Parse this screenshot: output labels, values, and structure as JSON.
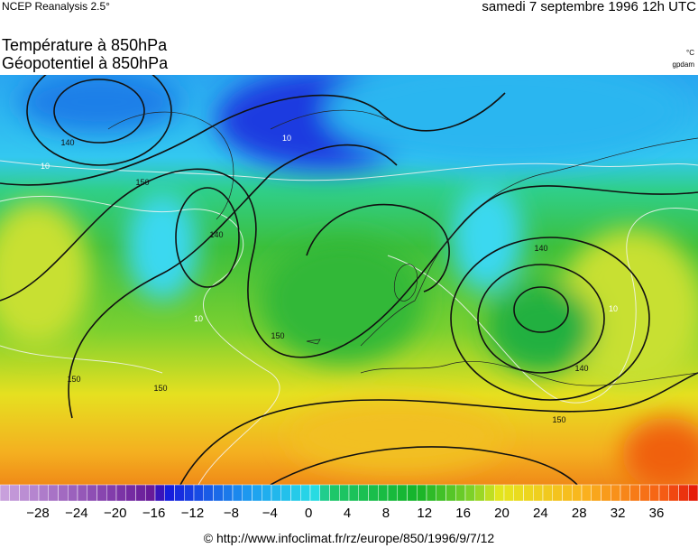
{
  "header": {
    "source": "NCEP Reanalysis 2.5°",
    "date": "samedi 7 septembre 1996 12h UTC"
  },
  "titles": {
    "line1": "Température à 850hPa",
    "line2": "Géopotentiel à 850hPa",
    "unit1": "°C",
    "unit2": "gpdam"
  },
  "map": {
    "contour_labels": [
      "140",
      "140",
      "150",
      "150",
      "140",
      "150",
      "150",
      "140",
      "150",
      "10",
      "10",
      "10",
      "10"
    ]
  },
  "colorbar": {
    "labels": [
      "−28",
      "−24",
      "−20",
      "−16",
      "−12",
      "−8",
      "−4",
      "0",
      "4",
      "8",
      "12",
      "16",
      "20",
      "24",
      "28",
      "32",
      "36"
    ]
  },
  "footer": {
    "credit": "© http://www.infoclimat.fr/rz/europe/850/1996/9/7/12"
  }
}
